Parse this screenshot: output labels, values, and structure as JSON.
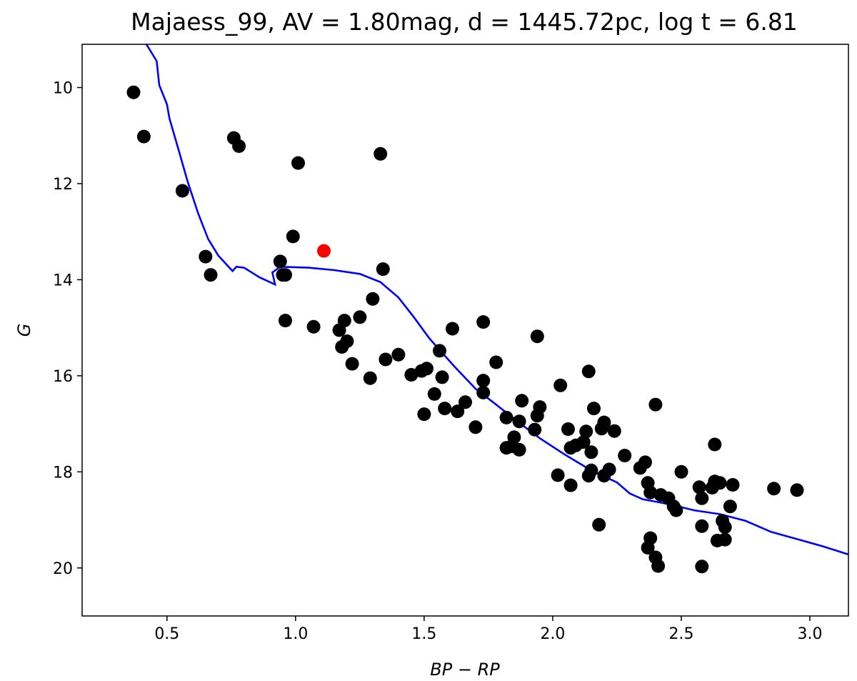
{
  "chart_data": {
    "type": "scatter",
    "title": "Majaess_99, AV = 1.80mag, d = 1445.72pc, log t = 6.81",
    "xlabel": "BP − RP",
    "ylabel": "G",
    "xlim": [
      0.17,
      3.15
    ],
    "ylim": [
      21.0,
      9.1
    ],
    "y_inverted": true,
    "grid": false,
    "x_ticks": [
      0.5,
      1.0,
      1.5,
      2.0,
      2.5,
      3.0
    ],
    "x_tick_labels": [
      "0.5",
      "1.0",
      "1.5",
      "2.0",
      "2.5",
      "3.0"
    ],
    "y_ticks": [
      10,
      12,
      14,
      16,
      18,
      20
    ],
    "y_tick_labels": [
      "10",
      "12",
      "14",
      "16",
      "18",
      "20"
    ],
    "colors": {
      "members": "#000000",
      "highlight": "#ff0000",
      "isochrone": "#0000ff"
    },
    "series": [
      {
        "kind": "points",
        "color": "#000000",
        "points": [
          [
            0.37,
            10.1
          ],
          [
            0.41,
            11.02
          ],
          [
            0.56,
            12.15
          ],
          [
            0.65,
            13.52
          ],
          [
            0.67,
            13.9
          ],
          [
            0.76,
            11.05
          ],
          [
            0.78,
            11.22
          ],
          [
            0.94,
            13.62
          ],
          [
            0.95,
            13.9
          ],
          [
            0.96,
            13.9
          ],
          [
            0.96,
            14.85
          ],
          [
            0.99,
            13.1
          ],
          [
            1.01,
            11.57
          ],
          [
            1.07,
            14.98
          ],
          [
            1.17,
            15.05
          ],
          [
            1.18,
            15.4
          ],
          [
            1.19,
            14.85
          ],
          [
            1.2,
            15.28
          ],
          [
            1.22,
            15.75
          ],
          [
            1.25,
            14.78
          ],
          [
            1.29,
            16.05
          ],
          [
            1.3,
            14.4
          ],
          [
            1.33,
            11.38
          ],
          [
            1.34,
            13.78
          ],
          [
            1.35,
            15.66
          ],
          [
            1.4,
            15.56
          ],
          [
            1.45,
            15.98
          ],
          [
            1.49,
            15.9
          ],
          [
            1.5,
            16.8
          ],
          [
            1.51,
            15.85
          ],
          [
            1.54,
            16.38
          ],
          [
            1.56,
            15.48
          ],
          [
            1.57,
            16.03
          ],
          [
            1.58,
            16.68
          ],
          [
            1.61,
            15.02
          ],
          [
            1.63,
            16.74
          ],
          [
            1.66,
            16.55
          ],
          [
            1.7,
            17.07
          ],
          [
            1.73,
            14.88
          ],
          [
            1.73,
            16.1
          ],
          [
            1.73,
            16.35
          ],
          [
            1.78,
            15.72
          ],
          [
            1.82,
            17.5
          ],
          [
            1.82,
            16.87
          ],
          [
            1.84,
            17.47
          ],
          [
            1.85,
            17.28
          ],
          [
            1.87,
            17.54
          ],
          [
            1.87,
            16.95
          ],
          [
            1.88,
            16.52
          ],
          [
            1.93,
            17.12
          ],
          [
            1.94,
            15.18
          ],
          [
            1.94,
            16.83
          ],
          [
            1.95,
            16.65
          ],
          [
            2.02,
            18.07
          ],
          [
            2.03,
            16.2
          ],
          [
            2.06,
            17.11
          ],
          [
            2.07,
            18.28
          ],
          [
            2.07,
            17.5
          ],
          [
            2.09,
            17.45
          ],
          [
            2.12,
            17.38
          ],
          [
            2.13,
            17.16
          ],
          [
            2.14,
            18.08
          ],
          [
            2.14,
            15.91
          ],
          [
            2.15,
            17.59
          ],
          [
            2.15,
            17.97
          ],
          [
            2.16,
            16.68
          ],
          [
            2.18,
            19.1
          ],
          [
            2.19,
            17.1
          ],
          [
            2.2,
            18.08
          ],
          [
            2.2,
            16.97
          ],
          [
            2.22,
            17.95
          ],
          [
            2.24,
            17.15
          ],
          [
            2.28,
            17.66
          ],
          [
            2.34,
            17.92
          ],
          [
            2.36,
            17.8
          ],
          [
            2.37,
            18.23
          ],
          [
            2.37,
            19.58
          ],
          [
            2.38,
            19.38
          ],
          [
            2.38,
            18.43
          ],
          [
            2.4,
            16.6
          ],
          [
            2.4,
            19.78
          ],
          [
            2.41,
            19.96
          ],
          [
            2.42,
            18.48
          ],
          [
            2.45,
            18.55
          ],
          [
            2.47,
            18.72
          ],
          [
            2.48,
            18.8
          ],
          [
            2.5,
            18.0
          ],
          [
            2.57,
            18.32
          ],
          [
            2.58,
            18.55
          ],
          [
            2.58,
            19.97
          ],
          [
            2.58,
            19.13
          ],
          [
            2.62,
            18.33
          ],
          [
            2.63,
            18.2
          ],
          [
            2.63,
            17.43
          ],
          [
            2.64,
            19.43
          ],
          [
            2.65,
            18.23
          ],
          [
            2.66,
            19.02
          ],
          [
            2.67,
            19.15
          ],
          [
            2.67,
            19.41
          ],
          [
            2.69,
            18.72
          ],
          [
            2.7,
            18.27
          ],
          [
            2.86,
            18.35
          ],
          [
            2.95,
            18.38
          ]
        ]
      },
      {
        "kind": "points",
        "color": "#ff0000",
        "points": [
          [
            1.11,
            13.4
          ]
        ]
      },
      {
        "kind": "line",
        "color": "#0000ff",
        "points": [
          [
            0.42,
            9.1
          ],
          [
            0.46,
            9.45
          ],
          [
            0.47,
            9.95
          ],
          [
            0.5,
            10.35
          ],
          [
            0.51,
            10.65
          ],
          [
            0.54,
            11.2
          ],
          [
            0.58,
            11.95
          ],
          [
            0.62,
            12.6
          ],
          [
            0.66,
            13.15
          ],
          [
            0.7,
            13.5
          ],
          [
            0.755,
            13.82
          ],
          [
            0.77,
            13.73
          ],
          [
            0.8,
            13.75
          ],
          [
            0.86,
            13.95
          ],
          [
            0.92,
            14.1
          ],
          [
            0.91,
            13.85
          ],
          [
            0.94,
            13.73
          ],
          [
            1.05,
            13.75
          ],
          [
            1.15,
            13.8
          ],
          [
            1.25,
            13.88
          ],
          [
            1.33,
            14.05
          ],
          [
            1.4,
            14.37
          ],
          [
            1.46,
            14.78
          ],
          [
            1.52,
            15.22
          ],
          [
            1.57,
            15.52
          ],
          [
            1.62,
            15.82
          ],
          [
            1.7,
            16.27
          ],
          [
            1.78,
            16.6
          ],
          [
            1.87,
            16.98
          ],
          [
            1.95,
            17.3
          ],
          [
            2.05,
            17.65
          ],
          [
            2.15,
            17.97
          ],
          [
            2.25,
            18.22
          ],
          [
            2.3,
            18.45
          ],
          [
            2.35,
            18.57
          ],
          [
            2.45,
            18.67
          ],
          [
            2.55,
            18.8
          ],
          [
            2.65,
            18.88
          ],
          [
            2.75,
            19.02
          ],
          [
            2.85,
            19.25
          ],
          [
            2.95,
            19.4
          ],
          [
            3.05,
            19.55
          ],
          [
            3.15,
            19.72
          ]
        ]
      }
    ]
  }
}
